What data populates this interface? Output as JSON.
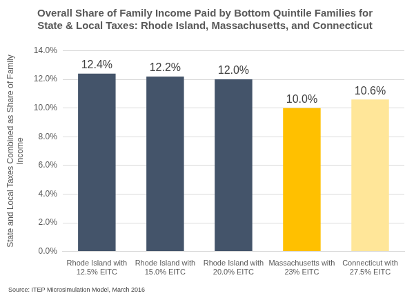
{
  "chart_data": {
    "type": "bar",
    "title": "Overall Share of Family Income Paid by Bottom Quintile Families for State & Local Taxes: Rhode Island, Massachusetts, and Connecticut",
    "y_label": "State and Local Taxes Combined as Share of Family Income",
    "source": "Source: ITEP Microsimulation Model, March 2016",
    "categories": [
      "Rhode Island with 12.5% EITC",
      "Rhode Island with 15.0% EITC",
      "Rhode Island with 20.0% EITC",
      "Massachusetts with 23% EITC",
      "Connecticut with 27.5% EITC"
    ],
    "values": [
      12.4,
      12.2,
      12.0,
      10.0,
      10.6
    ],
    "value_labels": [
      "12.4%",
      "12.2%",
      "12.0%",
      "10.0%",
      "10.6%"
    ],
    "colors": [
      "#44546a",
      "#44546a",
      "#44546a",
      "#ffc000",
      "#ffe699"
    ],
    "ylim": [
      0,
      14
    ],
    "yticks": [
      {
        "value": 0,
        "label": "0.0%"
      },
      {
        "value": 2,
        "label": "2.0%"
      },
      {
        "value": 4,
        "label": "4.0%"
      },
      {
        "value": 6,
        "label": "6.0%"
      },
      {
        "value": 8,
        "label": "8.0%"
      },
      {
        "value": 10,
        "label": "10.0%"
      },
      {
        "value": 12,
        "label": "12.0%"
      },
      {
        "value": 14,
        "label": "14.0%"
      }
    ],
    "grid": true,
    "data_labels": true
  }
}
